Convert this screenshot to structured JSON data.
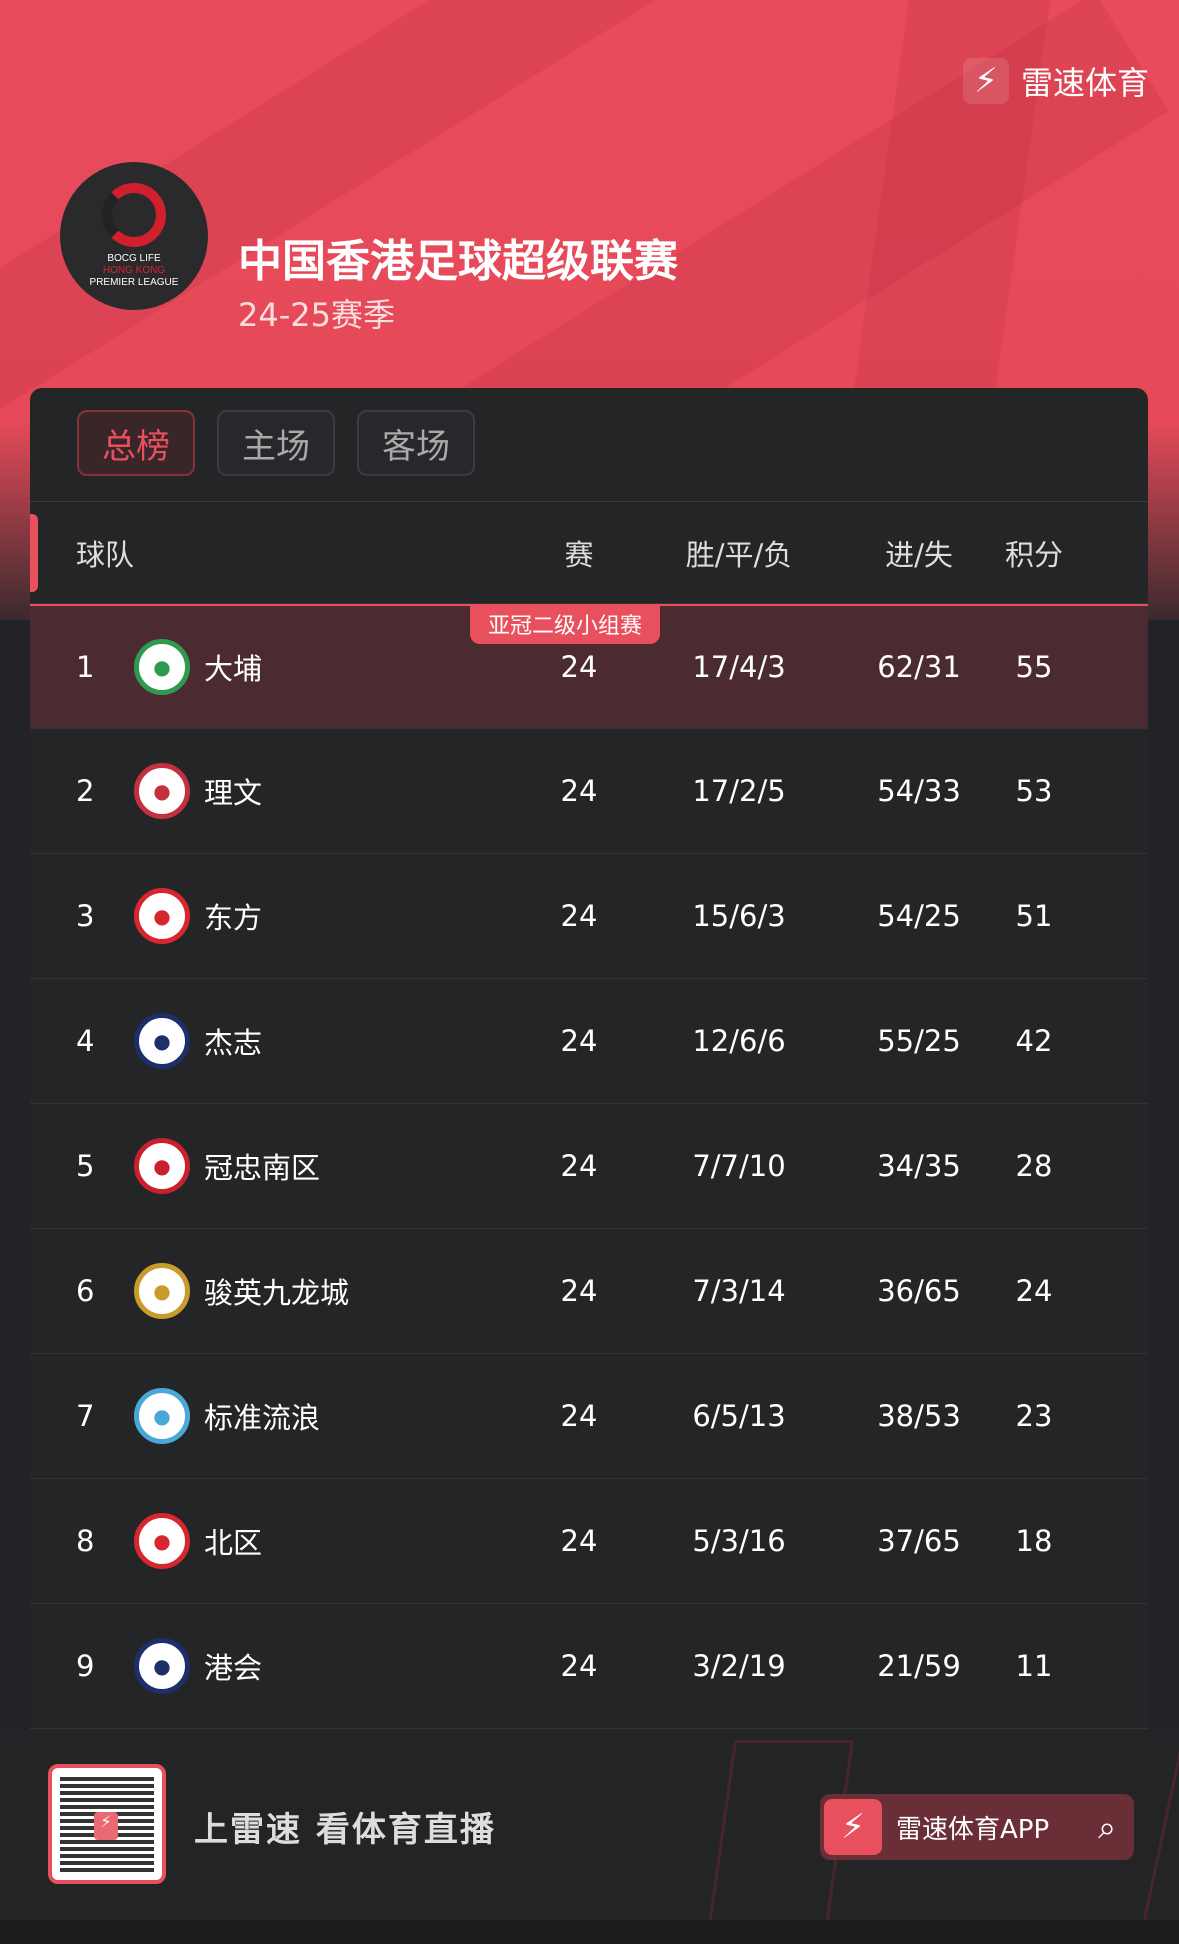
{
  "brand": {
    "name": "雷速体育",
    "icon": "lightning-bolt-icon"
  },
  "league": {
    "title": "中国香港足球超级联赛",
    "season": "24-25赛季",
    "logo_text": [
      "BOCG LIFE",
      "HONG KONG",
      "PREMIER LEAGUE"
    ]
  },
  "tabs": [
    {
      "label": "总榜",
      "active": true
    },
    {
      "label": "主场",
      "active": false
    },
    {
      "label": "客场",
      "active": false
    }
  ],
  "columns": {
    "team": "球队",
    "played": "赛",
    "wdl": "胜/平/负",
    "goals": "进/失",
    "points": "积分"
  },
  "qualification_badge": "亚冠二级小组赛",
  "rows": [
    {
      "rank": "1",
      "team": "大埔",
      "played": "24",
      "wdl": "17/4/3",
      "goals": "62/31",
      "points": "55",
      "crest": "#2e9a4e"
    },
    {
      "rank": "2",
      "team": "理文",
      "played": "24",
      "wdl": "17/2/5",
      "goals": "54/33",
      "points": "53",
      "crest": "#c43040"
    },
    {
      "rank": "3",
      "team": "东方",
      "played": "24",
      "wdl": "15/6/3",
      "goals": "54/25",
      "points": "51",
      "crest": "#d8262f"
    },
    {
      "rank": "4",
      "team": "杰志",
      "played": "24",
      "wdl": "12/6/6",
      "goals": "55/25",
      "points": "42",
      "crest": "#1c2f6a"
    },
    {
      "rank": "5",
      "team": "冠忠南区",
      "played": "24",
      "wdl": "7/7/10",
      "goals": "34/35",
      "points": "28",
      "crest": "#c8202c"
    },
    {
      "rank": "6",
      "team": "骏英九龙城",
      "played": "24",
      "wdl": "7/3/14",
      "goals": "36/65",
      "points": "24",
      "crest": "#c99b2a"
    },
    {
      "rank": "7",
      "team": "标准流浪",
      "played": "24",
      "wdl": "6/5/13",
      "goals": "38/53",
      "points": "23",
      "crest": "#4aa8d8"
    },
    {
      "rank": "8",
      "team": "北区",
      "played": "24",
      "wdl": "5/3/16",
      "goals": "37/65",
      "points": "18",
      "crest": "#d8262f"
    },
    {
      "rank": "9",
      "team": "港会",
      "played": "24",
      "wdl": "3/2/19",
      "goals": "21/59",
      "points": "11",
      "crest": "#1c2f6a"
    }
  ],
  "footer": {
    "slogan": "上雷速 看体育直播",
    "app_label": "雷速体育APP",
    "search_icon": "search-icon"
  },
  "colors": {
    "accent": "#e8505e",
    "hero": "#e64a59",
    "card": "#242527"
  }
}
